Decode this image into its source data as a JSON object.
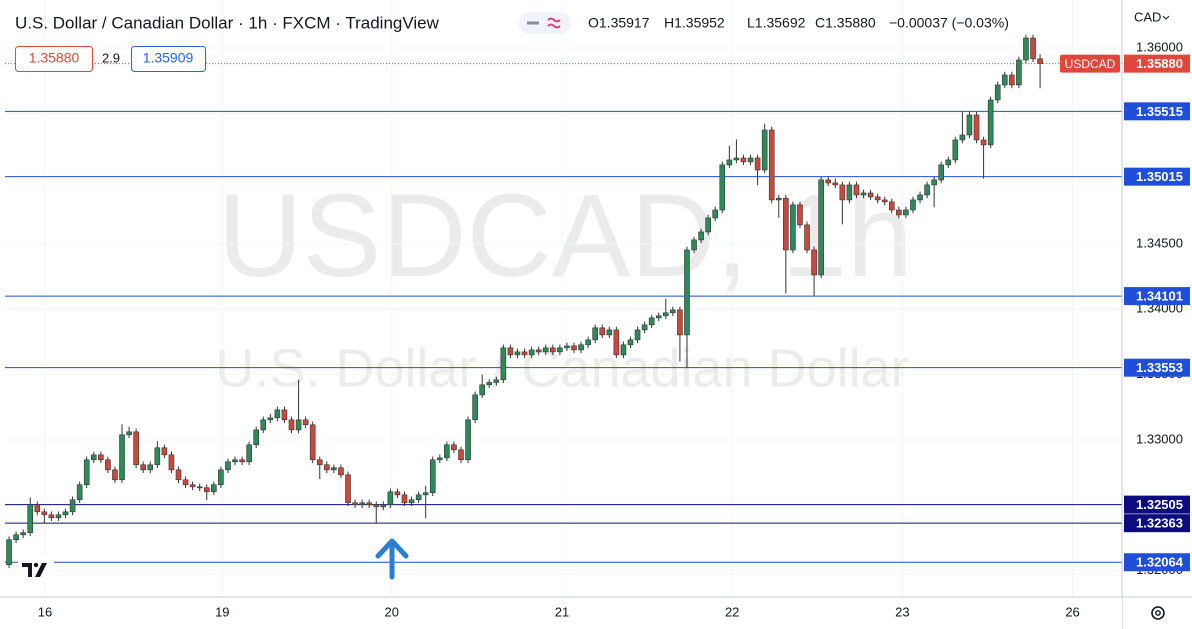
{
  "header": {
    "title": "U.S. Dollar / Canadian Dollar · 1h · FXCM · TradingView",
    "ohlc": [
      "O1.35917",
      "H1.35952",
      "L1.35692",
      "C1.35880"
    ],
    "change": "−0.00037 (−0.03%)",
    "sell": "1.35880",
    "spread": "2.9",
    "buy": "1.35909"
  },
  "chart_data": {
    "type": "candlestick",
    "watermark": [
      "USDCAD, 1h",
      "U.S. Dollar / Canadian Dollar"
    ],
    "currency": "CAD",
    "symbol": "USDCAD",
    "last_price": {
      "value": 1.3588,
      "label": "1.35880"
    },
    "up_color": "#2e8b57",
    "down_color": "#c94a3c",
    "ylim": [
      1.31798,
      1.36367
    ],
    "yticks": [
      {
        "value": 1.32,
        "label": "1.32000"
      },
      {
        "value": 1.325,
        "label": "1.32500"
      },
      {
        "value": 1.33,
        "label": "1.33000"
      },
      {
        "value": 1.335,
        "label": "1.33500"
      },
      {
        "value": 1.34,
        "label": "1.34000"
      },
      {
        "value": 1.345,
        "label": "1.34500"
      },
      {
        "value": 1.35,
        "label": "1.35000"
      },
      {
        "value": 1.355,
        "label": "1.35500"
      },
      {
        "value": 1.36,
        "label": "1.36000"
      }
    ],
    "xlim": [
      -0.57,
      157.6
    ],
    "xticks": [
      {
        "value": 5.1,
        "label": "16"
      },
      {
        "value": 30.2,
        "label": "19"
      },
      {
        "value": 54.2,
        "label": "20"
      },
      {
        "value": 78.3,
        "label": "21"
      },
      {
        "value": 102.4,
        "label": "22"
      },
      {
        "value": 126.5,
        "label": "23"
      },
      {
        "value": 150.6,
        "label": "26"
      }
    ],
    "grid": true,
    "levels": [
      {
        "value": 1.35515,
        "color": "#1f4fd8"
      },
      {
        "value": 1.35015,
        "color": "#1f4fd8"
      },
      {
        "value": 1.34101,
        "color": "#1f4fd8"
      },
      {
        "value": 1.33553,
        "color": "#1f4fd8"
      },
      {
        "value": 1.32505,
        "color": "#0c0c80"
      },
      {
        "value": 1.32363,
        "color": "#0c0c80"
      },
      {
        "value": 1.32064,
        "color": "#1f4fd8"
      }
    ],
    "open": [
      1.32045,
      1.32236,
      1.32274,
      1.3229,
      1.32504,
      1.3245,
      1.32427,
      1.32404,
      1.32427,
      1.3245,
      1.32542,
      1.32657,
      1.32848,
      1.32886,
      1.32848,
      1.32771,
      1.32695,
      1.33039,
      1.33062,
      1.3281,
      1.32771,
      1.3281,
      1.3294,
      1.32886,
      1.32771,
      1.32695,
      1.32657,
      1.32641,
      1.32634,
      1.32603,
      1.32657,
      1.32771,
      1.32833,
      1.32848,
      1.32833,
      1.32963,
      1.33077,
      1.33154,
      1.33169,
      1.3323,
      1.33154,
      1.33077,
      1.33154,
      1.33116,
      1.32848,
      1.3281,
      1.32771,
      1.32787,
      1.32733,
      1.32519,
      1.32504,
      1.32519,
      1.32504,
      1.32488,
      1.32504,
      1.32603,
      1.3258,
      1.32519,
      1.32542,
      1.3258,
      1.32596,
      1.32848,
      1.32863,
      1.32963,
      1.32924,
      1.32848,
      1.33154,
      1.33345,
      1.33422,
      1.3344,
      1.3346,
      1.33705,
      1.33651,
      1.33674,
      1.33651,
      1.33689,
      1.33674,
      1.33705,
      1.33674,
      1.33705,
      1.3372,
      1.33689,
      1.33728,
      1.33766,
      1.33858,
      1.33804,
      1.33842,
      1.33651,
      1.33728,
      1.33766,
      1.33842,
      1.33881,
      1.33934,
      1.3395,
      1.33973,
      1.33995,
      1.33804,
      1.34454,
      1.34531,
      1.34592,
      1.34699,
      1.3476,
      1.35105,
      1.35143,
      1.35158,
      1.35128,
      1.35158,
      1.35066,
      1.35372,
      1.34837,
      1.3485,
      1.34454,
      1.34799,
      1.34646,
      1.34454,
      1.34263,
      1.3499,
      1.34967,
      1.34952,
      1.34837,
      1.34952,
      1.34875,
      1.3489,
      1.3486,
      1.34837,
      1.34822,
      1.3476,
      1.34722,
      1.3476,
      1.34837,
      1.34875,
      1.34952,
      1.3499,
      1.35105,
      1.35143,
      1.35296,
      1.35334,
      1.35487,
      1.35296,
      1.35258,
      1.35602,
      1.35717,
      1.35793,
      1.35717,
      1.35908,
      1.36076,
      1.35917
    ],
    "high": [
      1.32261,
      1.32299,
      1.32315,
      1.3256,
      1.32529,
      1.32475,
      1.32452,
      1.32452,
      1.32475,
      1.32567,
      1.32682,
      1.32873,
      1.32911,
      1.32911,
      1.32873,
      1.32796,
      1.3312,
      1.331,
      1.33087,
      1.32835,
      1.32835,
      1.3299,
      1.32965,
      1.32911,
      1.32796,
      1.3272,
      1.32682,
      1.32666,
      1.32659,
      1.32682,
      1.32796,
      1.32858,
      1.32873,
      1.32873,
      1.32988,
      1.33102,
      1.33179,
      1.332,
      1.33255,
      1.33255,
      1.33179,
      1.3346,
      1.33179,
      1.33141,
      1.32873,
      1.32835,
      1.32812,
      1.32812,
      1.32758,
      1.32544,
      1.32544,
      1.32544,
      1.32529,
      1.32529,
      1.32628,
      1.32628,
      1.32605,
      1.32567,
      1.32605,
      1.3265,
      1.32873,
      1.32888,
      1.32988,
      1.32988,
      1.32949,
      1.33179,
      1.3337,
      1.335,
      1.33465,
      1.33485,
      1.3373,
      1.3373,
      1.33699,
      1.33699,
      1.33714,
      1.33714,
      1.3373,
      1.3373,
      1.3373,
      1.33745,
      1.33745,
      1.33753,
      1.33791,
      1.33883,
      1.33883,
      1.33867,
      1.33867,
      1.33753,
      1.33791,
      1.33867,
      1.33906,
      1.33959,
      1.33975,
      1.3408,
      1.3402,
      1.3402,
      1.34479,
      1.34556,
      1.34617,
      1.34724,
      1.34785,
      1.3513,
      1.3525,
      1.353,
      1.35183,
      1.35183,
      1.35183,
      1.3542,
      1.35397,
      1.34875,
      1.34875,
      1.34824,
      1.34824,
      1.34671,
      1.34479,
      1.35015,
      1.35015,
      1.35,
      1.34977,
      1.34977,
      1.34977,
      1.34915,
      1.34915,
      1.34885,
      1.34862,
      1.34847,
      1.34785,
      1.34785,
      1.34862,
      1.349,
      1.34977,
      1.35015,
      1.3513,
      1.35168,
      1.35321,
      1.35515,
      1.35512,
      1.35512,
      1.35321,
      1.35627,
      1.35742,
      1.35818,
      1.35818,
      1.35933,
      1.36101,
      1.36101,
      1.35952
    ],
    "low": [
      1.3202,
      1.32211,
      1.32249,
      1.32265,
      1.32425,
      1.3236,
      1.32379,
      1.32379,
      1.32402,
      1.32425,
      1.32517,
      1.32632,
      1.32823,
      1.32823,
      1.32746,
      1.3267,
      1.3267,
      1.33014,
      1.32785,
      1.32746,
      1.32746,
      1.32785,
      1.32861,
      1.32746,
      1.3267,
      1.32632,
      1.32616,
      1.32609,
      1.3254,
      1.32578,
      1.32632,
      1.32746,
      1.32808,
      1.32808,
      1.32808,
      1.32938,
      1.33052,
      1.33129,
      1.33144,
      1.33129,
      1.33052,
      1.33052,
      1.33091,
      1.32823,
      1.327,
      1.32746,
      1.32746,
      1.32708,
      1.32494,
      1.32479,
      1.32479,
      1.32479,
      1.32363,
      1.32463,
      1.32479,
      1.32555,
      1.32494,
      1.32494,
      1.32517,
      1.324,
      1.32571,
      1.32823,
      1.32838,
      1.32899,
      1.32823,
      1.32823,
      1.33129,
      1.3332,
      1.33397,
      1.33415,
      1.33435,
      1.33626,
      1.33626,
      1.33626,
      1.33626,
      1.33649,
      1.33649,
      1.33649,
      1.33649,
      1.3368,
      1.33664,
      1.33664,
      1.33703,
      1.33741,
      1.33779,
      1.33779,
      1.33626,
      1.33626,
      1.33703,
      1.33741,
      1.33817,
      1.33856,
      1.33909,
      1.33925,
      1.33948,
      1.336,
      1.3355,
      1.34429,
      1.34506,
      1.34567,
      1.34674,
      1.34735,
      1.3508,
      1.35118,
      1.35103,
      1.35103,
      1.3495,
      1.35041,
      1.34812,
      1.347,
      1.3412,
      1.34429,
      1.34621,
      1.34429,
      1.34101,
      1.34238,
      1.34942,
      1.34927,
      1.3465,
      1.34812,
      1.3485,
      1.3485,
      1.34835,
      1.34812,
      1.34797,
      1.34735,
      1.34697,
      1.34697,
      1.34735,
      1.34812,
      1.3485,
      1.3478,
      1.34965,
      1.3508,
      1.35118,
      1.35271,
      1.35309,
      1.35271,
      1.35,
      1.35233,
      1.35577,
      1.35692,
      1.35692,
      1.35692,
      1.35883,
      1.35892,
      1.35692
    ],
    "close": [
      1.32236,
      1.32274,
      1.3229,
      1.32504,
      1.3245,
      1.32427,
      1.32404,
      1.32427,
      1.3245,
      1.32542,
      1.32657,
      1.32848,
      1.32886,
      1.32848,
      1.32771,
      1.32695,
      1.33039,
      1.33062,
      1.3281,
      1.32771,
      1.3281,
      1.3294,
      1.32886,
      1.32771,
      1.32695,
      1.32657,
      1.32641,
      1.32634,
      1.32603,
      1.32657,
      1.32771,
      1.32833,
      1.32848,
      1.32833,
      1.32963,
      1.33077,
      1.33154,
      1.33169,
      1.3323,
      1.33154,
      1.33077,
      1.33154,
      1.33116,
      1.32848,
      1.3281,
      1.32771,
      1.32787,
      1.32733,
      1.32519,
      1.32504,
      1.32519,
      1.32504,
      1.32488,
      1.32504,
      1.32603,
      1.3258,
      1.32519,
      1.32542,
      1.3258,
      1.32596,
      1.32848,
      1.32863,
      1.32963,
      1.32924,
      1.32848,
      1.33154,
      1.33345,
      1.33422,
      1.3344,
      1.3346,
      1.33705,
      1.33651,
      1.33674,
      1.33651,
      1.33689,
      1.33674,
      1.33705,
      1.33674,
      1.33705,
      1.3372,
      1.33689,
      1.33728,
      1.33766,
      1.33858,
      1.33804,
      1.33842,
      1.33651,
      1.33728,
      1.33766,
      1.33842,
      1.33881,
      1.33934,
      1.3395,
      1.33973,
      1.33995,
      1.33804,
      1.34454,
      1.34531,
      1.34592,
      1.34699,
      1.3476,
      1.35105,
      1.35143,
      1.35158,
      1.35128,
      1.35158,
      1.35066,
      1.35372,
      1.34837,
      1.3485,
      1.34454,
      1.34799,
      1.34646,
      1.34454,
      1.34263,
      1.3499,
      1.34967,
      1.34952,
      1.34837,
      1.34952,
      1.34875,
      1.3489,
      1.3486,
      1.34837,
      1.34822,
      1.3476,
      1.34722,
      1.3476,
      1.34837,
      1.34875,
      1.34952,
      1.3499,
      1.35105,
      1.35143,
      1.35296,
      1.35334,
      1.35487,
      1.35296,
      1.35258,
      1.35602,
      1.35717,
      1.35793,
      1.35717,
      1.35908,
      1.36076,
      1.35917,
      1.3588
    ]
  }
}
